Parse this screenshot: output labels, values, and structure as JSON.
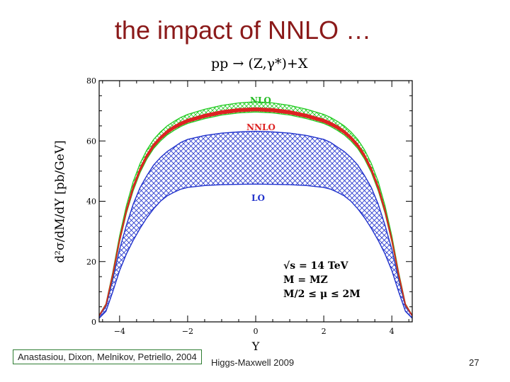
{
  "slide": {
    "title": "the impact of NNLO …",
    "citation": "Anastasiou, Dixon, Melnikov, Petriello, 2004",
    "footer": "Higgs-Maxwell 2009",
    "page_number": "27"
  },
  "chart_data": {
    "type": "area",
    "process_label": "pp → (Z,γ*)+X",
    "xlabel": "Y",
    "ylabel": "d²σ/dM/dY [pb/GeV]",
    "xlim": [
      -4.6,
      4.6
    ],
    "ylim": [
      0,
      80
    ],
    "xticks": [
      -4,
      -2,
      0,
      2,
      4
    ],
    "yticks": [
      0,
      20,
      40,
      60,
      80
    ],
    "annotations": [
      "√s = 14 TeV",
      "M = MZ",
      "M/2 ≤ μ ≤ 2M"
    ],
    "x": [
      -4.6,
      -4.4,
      -4.2,
      -4,
      -3.8,
      -3.6,
      -3.4,
      -3.2,
      -3,
      -2.8,
      -2.6,
      -2.4,
      -2.2,
      -2,
      -1.5,
      -1,
      -0.5,
      0,
      0.5,
      1,
      1.5,
      2,
      2.2,
      2.4,
      2.6,
      2.8,
      3,
      3.2,
      3.4,
      3.6,
      3.8,
      4,
      4.2,
      4.4,
      4.6
    ],
    "series": [
      {
        "name": "LO",
        "color": "#2233cc",
        "upper": [
          2,
          5,
          14,
          24,
          32,
          39,
          44.5,
          48.5,
          52,
          54.5,
          56.5,
          58,
          59.5,
          60.5,
          61.8,
          62.6,
          63,
          63.2,
          63,
          62.6,
          61.8,
          60.5,
          59.5,
          58,
          56.5,
          54.5,
          52,
          48.5,
          44.5,
          39,
          32,
          24,
          14,
          5,
          2
        ],
        "lower": [
          1.2,
          3.5,
          10,
          17,
          22.5,
          27,
          31,
          34.5,
          37.5,
          40,
          41.8,
          43,
          44,
          44.6,
          45.2,
          45.5,
          45.6,
          45.7,
          45.6,
          45.5,
          45.2,
          44.6,
          44,
          43,
          41.8,
          40,
          37.5,
          34.5,
          31,
          27,
          22.5,
          17,
          10,
          3.5,
          1.2
        ]
      },
      {
        "name": "NLO",
        "color": "#22cc22",
        "upper": [
          2.2,
          6,
          16.5,
          28.5,
          38.5,
          46.5,
          52.5,
          57,
          60.5,
          63,
          65,
          66.5,
          67.8,
          68.8,
          70.5,
          71.8,
          72.6,
          73,
          72.6,
          71.8,
          70.5,
          68.8,
          67.8,
          66.5,
          65,
          63,
          60.5,
          57,
          52.5,
          46.5,
          38.5,
          28.5,
          16.5,
          6,
          2.2
        ],
        "lower": [
          2,
          5.5,
          15,
          26.5,
          36,
          43.5,
          49.5,
          54,
          57.5,
          60,
          62,
          63.5,
          64.8,
          65.8,
          67.4,
          68.6,
          69.3,
          69.6,
          69.3,
          68.6,
          67.4,
          65.8,
          64.8,
          63.5,
          62,
          60,
          57.5,
          54,
          49.5,
          43.5,
          36,
          26.5,
          15,
          5.5,
          2
        ]
      },
      {
        "name": "NNLO",
        "color": "#dd2222",
        "upper": [
          2.1,
          5.8,
          16,
          27.5,
          37.3,
          45,
          51,
          55.5,
          59,
          61.5,
          63.5,
          65,
          66.2,
          67.2,
          68.8,
          70,
          70.7,
          71,
          70.7,
          70,
          68.8,
          67.2,
          66.2,
          65,
          63.5,
          61.5,
          59,
          55.5,
          51,
          45,
          37.3,
          27.5,
          16,
          5.8,
          2.1
        ],
        "lower": [
          2,
          5.6,
          15.4,
          26.8,
          36.4,
          44,
          50,
          54.5,
          58,
          60.5,
          62.5,
          64,
          65.2,
          66.2,
          67.8,
          69,
          69.7,
          70,
          69.7,
          69,
          67.8,
          66.2,
          65.2,
          64,
          62.5,
          60.5,
          58,
          54.5,
          50,
          44,
          36.4,
          26.8,
          15.4,
          5.6,
          2
        ]
      }
    ]
  }
}
